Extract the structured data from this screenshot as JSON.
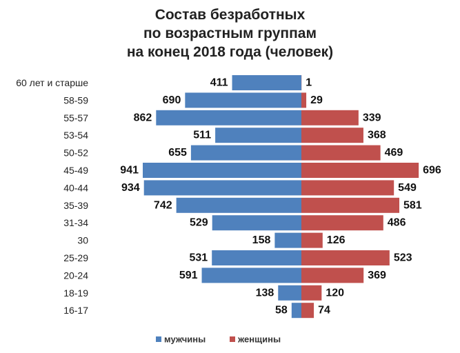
{
  "chart_data": {
    "type": "bar",
    "orientation": "horizontal",
    "layout": "population-pyramid",
    "title_lines": [
      "Состав безработных",
      "по возрастным группам",
      "на конец 2018 года (человек)"
    ],
    "categories": [
      "60 лет и старше",
      "58-59",
      "55-57",
      "53-54",
      "50-52",
      "45-49",
      "40-44",
      "35-39",
      "31-34",
      "30",
      "25-29",
      "20-24",
      "18-19",
      "16-17"
    ],
    "series": [
      {
        "name": "мужчины",
        "side": "left",
        "color": "#4f81bd",
        "values": [
          411,
          690,
          862,
          511,
          655,
          941,
          934,
          742,
          529,
          158,
          531,
          591,
          138,
          58
        ]
      },
      {
        "name": "женщины",
        "side": "right",
        "color": "#c0504d",
        "values": [
          1,
          29,
          339,
          368,
          469,
          696,
          549,
          581,
          486,
          126,
          523,
          369,
          120,
          74
        ]
      }
    ],
    "value_max": 941,
    "grid": false,
    "legend_position": "bottom"
  }
}
